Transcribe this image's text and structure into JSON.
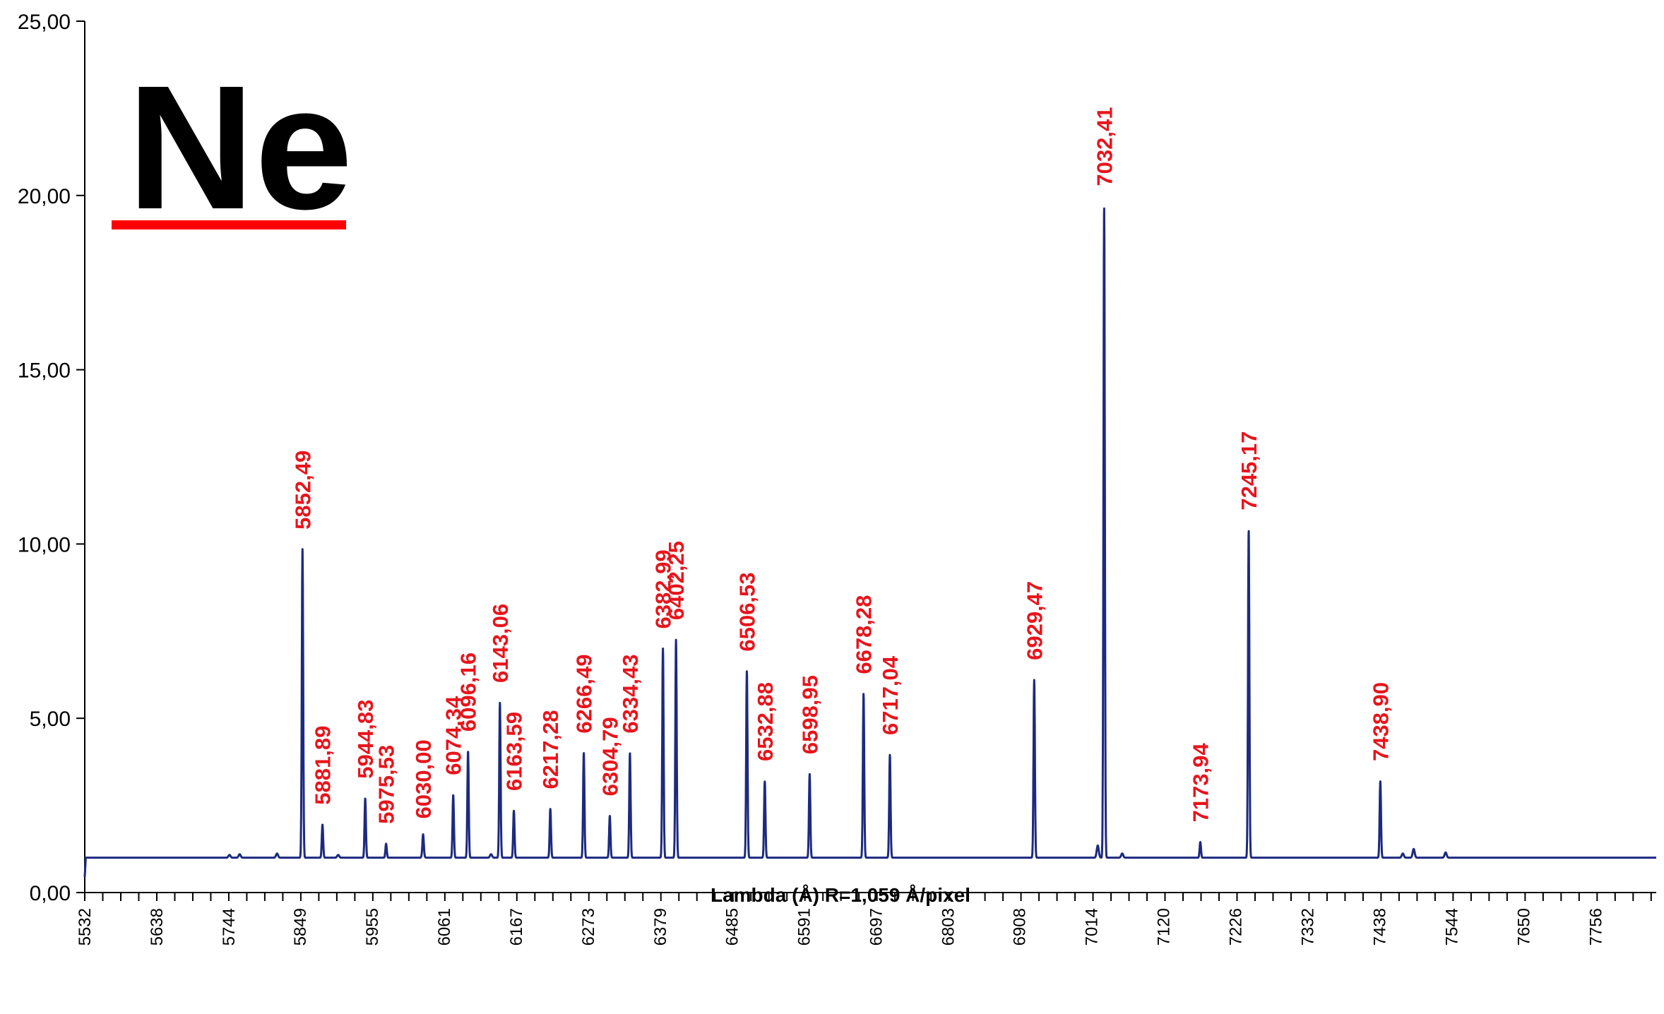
{
  "chart_data": {
    "type": "line",
    "title": "Ne",
    "xlabel": "Lambda (Å) R=1,059 Å/pixel",
    "ylabel": "",
    "xlim": [
      5532,
      7845
    ],
    "ylim": [
      0,
      25
    ],
    "grid": false,
    "legend": "none",
    "colors": {
      "line": "#1c2a80",
      "annotation": "#e8141c",
      "underline": "#ff0000",
      "title": "#000000"
    },
    "y_ticks": [
      "0,00",
      "5,00",
      "10,00",
      "15,00",
      "20,00",
      "25,00"
    ],
    "y_tick_values": [
      0,
      5,
      10,
      15,
      20,
      25
    ],
    "x_tick_labels": [
      "5532",
      "5638",
      "5744",
      "5849",
      "5955",
      "6061",
      "6167",
      "6273",
      "6379",
      "6485",
      "6591",
      "6697",
      "6803",
      "6908",
      "7014",
      "7120",
      "7226",
      "7332",
      "7438",
      "7544",
      "7650",
      "7756"
    ],
    "x_tick_values": [
      5532,
      5638,
      5744,
      5849,
      5955,
      6061,
      6167,
      6273,
      6379,
      6485,
      6591,
      6697,
      6803,
      6908,
      7014,
      7120,
      7226,
      7332,
      7438,
      7544,
      7650,
      7756
    ],
    "baseline": 1.0,
    "peaks": [
      {
        "x": 5852.49,
        "y": 9.85,
        "label": "5852,49"
      },
      {
        "x": 5881.89,
        "y": 1.95,
        "label": "5881,89"
      },
      {
        "x": 5944.83,
        "y": 2.7,
        "label": "5944,83"
      },
      {
        "x": 5975.53,
        "y": 1.4,
        "label": "5975,53"
      },
      {
        "x": 6030.0,
        "y": 1.55,
        "label": "6030,00"
      },
      {
        "x": 6074.34,
        "y": 2.8,
        "label": "6074,34"
      },
      {
        "x": 6096.16,
        "y": 4.05,
        "label": "6096,16"
      },
      {
        "x": 6143.06,
        "y": 5.45,
        "label": "6143,06"
      },
      {
        "x": 6163.59,
        "y": 2.35,
        "label": "6163,59"
      },
      {
        "x": 6217.28,
        "y": 2.4,
        "label": "6217,28"
      },
      {
        "x": 6266.49,
        "y": 4.0,
        "label": "6266,49"
      },
      {
        "x": 6304.79,
        "y": 2.2,
        "label": "6304,79"
      },
      {
        "x": 6334.43,
        "y": 4.0,
        "label": "6334,43"
      },
      {
        "x": 6382.99,
        "y": 7.0,
        "label": "6382,99"
      },
      {
        "x": 6402.25,
        "y": 7.25,
        "label": "6402,25"
      },
      {
        "x": 6506.53,
        "y": 6.35,
        "label": "6506,53"
      },
      {
        "x": 6532.88,
        "y": 3.2,
        "label": "6532,88"
      },
      {
        "x": 6598.95,
        "y": 3.4,
        "label": "6598,95"
      },
      {
        "x": 6678.28,
        "y": 5.7,
        "label": "6678,28"
      },
      {
        "x": 6717.04,
        "y": 3.95,
        "label": "6717,04"
      },
      {
        "x": 6929.47,
        "y": 6.1,
        "label": "6929,47"
      },
      {
        "x": 7032.41,
        "y": 19.7,
        "label": "7032,41"
      },
      {
        "x": 7173.94,
        "y": 1.45,
        "label": "7173,94"
      },
      {
        "x": 7245.17,
        "y": 10.4,
        "label": "7245,17"
      },
      {
        "x": 7438.9,
        "y": 3.2,
        "label": "7438,90"
      }
    ],
    "minor_peaks": [
      {
        "x": 5745,
        "y": 1.08
      },
      {
        "x": 5760,
        "y": 1.1
      },
      {
        "x": 5815,
        "y": 1.12
      },
      {
        "x": 5905,
        "y": 1.08
      },
      {
        "x": 6030,
        "y": 1.12
      },
      {
        "x": 6130,
        "y": 1.1
      },
      {
        "x": 7023,
        "y": 1.35
      },
      {
        "x": 7059,
        "y": 1.12
      },
      {
        "x": 7472,
        "y": 1.12
      },
      {
        "x": 7488,
        "y": 1.25
      },
      {
        "x": 7535,
        "y": 1.15
      }
    ]
  }
}
